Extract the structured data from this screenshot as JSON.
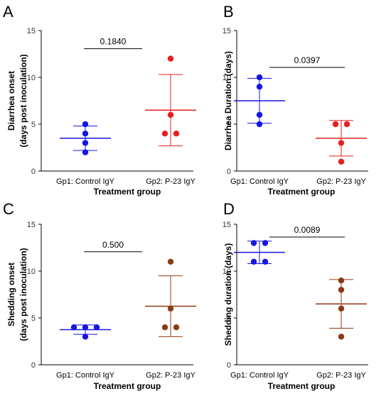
{
  "chart_data": [
    {
      "type": "scatter",
      "panel_label": "A",
      "ylabel_lines": [
        "Diarrhea onset",
        "(days post inoculation)"
      ],
      "xlabel": "Treatment group",
      "categories": [
        "Gp1: Control IgY",
        "Gp2: P-23 IgY"
      ],
      "ylim": [
        0,
        15
      ],
      "yticks": [
        0,
        5,
        10,
        15
      ],
      "p_value": "0.1840",
      "groups": [
        {
          "name": "Gp1: Control IgY",
          "color": "#1515e6",
          "points": [
            5,
            4,
            3,
            2
          ],
          "mean": 3.5,
          "sd_low": 2.2,
          "sd_high": 4.8
        },
        {
          "name": "Gp2: P-23 IgY",
          "color": "#e61f1f",
          "points": [
            12,
            6,
            4,
            4
          ],
          "mean": 6.5,
          "sd_low": 2.7,
          "sd_high": 10.3
        }
      ]
    },
    {
      "type": "scatter",
      "panel_label": "B",
      "ylabel_lines": [
        "Diarrhea Duration (days)"
      ],
      "xlabel": "Treatment group",
      "categories": [
        "Gp1: Control IgY",
        "Gp2: P-23 IgY"
      ],
      "ylim": [
        0,
        15
      ],
      "yticks": [
        0,
        5,
        10,
        15
      ],
      "p_value": "0.0397",
      "groups": [
        {
          "name": "Gp1: Control IgY",
          "color": "#1515e6",
          "points": [
            10,
            9,
            6,
            5
          ],
          "mean": 7.5,
          "sd_low": 5.1,
          "sd_high": 9.9
        },
        {
          "name": "Gp2: P-23 IgY",
          "color": "#e61f1f",
          "points": [
            5,
            5,
            3,
            1
          ],
          "mean": 3.5,
          "sd_low": 1.6,
          "sd_high": 5.4
        }
      ]
    },
    {
      "type": "scatter",
      "panel_label": "C",
      "ylabel_lines": [
        "Shedding onset",
        "(days post inoculation)"
      ],
      "xlabel": "Treatment group",
      "categories": [
        "Gp1: Control IgY",
        "Gp2: P-23 IgY"
      ],
      "ylim": [
        0,
        15
      ],
      "yticks": [
        0,
        5,
        10,
        15
      ],
      "p_value": "0.500",
      "groups": [
        {
          "name": "Gp1: Control IgY",
          "color": "#1515e6",
          "points": [
            4,
            4,
            4,
            3
          ],
          "mean": 3.75,
          "sd_low": 3.25,
          "sd_high": 4.25
        },
        {
          "name": "Gp2: P-23 IgY",
          "color": "#8b3a14",
          "points": [
            11,
            6,
            4,
            4
          ],
          "mean": 6.25,
          "sd_low": 3.0,
          "sd_high": 9.5
        }
      ]
    },
    {
      "type": "scatter",
      "panel_label": "D",
      "ylabel_lines": [
        "Shedding duration (days)"
      ],
      "xlabel": "Treatment group",
      "categories": [
        "Gp1: Control IgY",
        "Gp2: P-23 IgY"
      ],
      "ylim": [
        0,
        15
      ],
      "yticks": [
        0,
        5,
        10,
        15
      ],
      "p_value": "0.0089",
      "groups": [
        {
          "name": "Gp1: Control IgY",
          "color": "#1515e6",
          "points": [
            13,
            13,
            11,
            11
          ],
          "mean": 12.0,
          "sd_low": 10.8,
          "sd_high": 13.2
        },
        {
          "name": "Gp2: P-23 IgY",
          "color": "#8b3a14",
          "points": [
            9,
            8,
            6,
            3
          ],
          "mean": 6.5,
          "sd_low": 3.9,
          "sd_high": 9.1
        }
      ]
    }
  ]
}
